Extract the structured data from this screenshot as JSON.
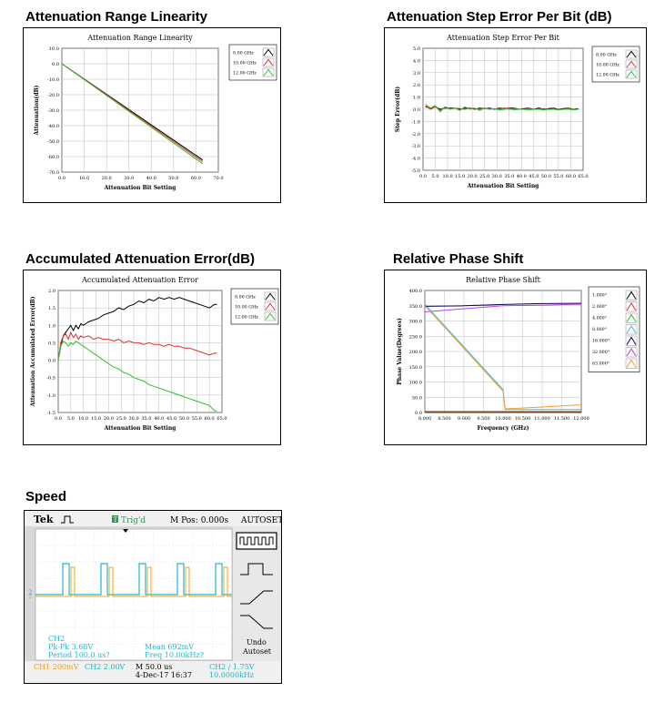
{
  "sections": {
    "s1": "Attenuation Range Linearity",
    "s2": "Attenuation Step Error Per Bit (dB)",
    "s3": "Accumulated Attenuation Error(dB)",
    "s4": "Relative Phase Shift",
    "s5": "Speed"
  },
  "chart_data": [
    {
      "id": "c1",
      "type": "line",
      "title": "Attenuation Range Linearity",
      "xlabel": "Attenuation Bit Setting",
      "ylabel": "Attenuation(dB)",
      "xlim": [
        0,
        70
      ],
      "ylim": [
        -70,
        10
      ],
      "xticks": [
        0,
        10,
        20,
        30,
        40,
        50,
        60,
        70
      ],
      "yticks": [
        10,
        0,
        -10,
        -20,
        -30,
        -40,
        -50,
        -60,
        -70
      ],
      "tick_decimals": 1,
      "grid": true,
      "legend_position": "top-right",
      "series": [
        {
          "name": "8.00 GHz",
          "color": "#000000",
          "x": [
            0,
            63
          ],
          "y": [
            0,
            -62.2
          ]
        },
        {
          "name": "10.00 GHz",
          "color": "#e03030",
          "x": [
            0,
            63
          ],
          "y": [
            0,
            -63.3
          ]
        },
        {
          "name": "12.00 GHz",
          "color": "#30c030",
          "x": [
            0,
            63
          ],
          "y": [
            0,
            -64.6
          ]
        }
      ]
    },
    {
      "id": "c2",
      "type": "line",
      "title": "Attenuation Step Error Per Bit",
      "xlabel": "Attenuation Bit Setting",
      "ylabel": "Step Error(dB)",
      "xlim": [
        0,
        65
      ],
      "ylim": [
        -5,
        5
      ],
      "xticks": [
        0,
        5,
        10,
        15,
        20,
        25,
        30,
        35,
        40,
        45,
        50,
        55,
        60,
        65
      ],
      "yticks": [
        5,
        4,
        3,
        2,
        1,
        0,
        -1,
        -2,
        -3,
        -4,
        -5
      ],
      "tick_decimals": 1,
      "grid": true,
      "legend_position": "top-right",
      "series": [
        {
          "name": "8.00 GHz",
          "color": "#000000",
          "x": [
            1,
            3,
            5,
            7,
            9,
            11,
            13,
            15,
            17,
            19,
            21,
            23,
            25,
            27,
            29,
            31,
            33,
            35,
            37,
            39,
            41,
            43,
            45,
            47,
            49,
            51,
            53,
            55,
            57,
            59,
            61,
            63
          ],
          "y": [
            0.2,
            0.1,
            0.2,
            0.0,
            0.1,
            0.1,
            0.1,
            0.0,
            0.1,
            0.1,
            0.0,
            0.1,
            0.05,
            0.1,
            0.0,
            0.1,
            0.05,
            0.1,
            0.1,
            0.0,
            0.05,
            0.1,
            0.0,
            0.1,
            0.0,
            0.05,
            0.1,
            0.0,
            0.05,
            0.1,
            0.0,
            0.05
          ]
        },
        {
          "name": "10.00 GHz",
          "color": "#e03030",
          "x": [
            1,
            3,
            5,
            7,
            9,
            11,
            13,
            15,
            17,
            19,
            21,
            23,
            25,
            27,
            29,
            31,
            33,
            35,
            37,
            39,
            41,
            43,
            45,
            47,
            49,
            51,
            53,
            55,
            57,
            59,
            61,
            63
          ],
          "y": [
            0.3,
            0.0,
            0.2,
            -0.1,
            0.2,
            0.0,
            0.1,
            0.05,
            0.0,
            0.1,
            0.05,
            0.0,
            0.1,
            0.0,
            0.05,
            0.0,
            0.1,
            0.0,
            0.05,
            0.0,
            0.0,
            0.05,
            0.0,
            0.0,
            0.05,
            0.0,
            0.0,
            0.0,
            0.0,
            0.05,
            0.0,
            0.0
          ]
        },
        {
          "name": "12.00 GHz",
          "color": "#30c030",
          "x": [
            1,
            3,
            5,
            7,
            9,
            11,
            13,
            15,
            17,
            19,
            21,
            23,
            25,
            27,
            29,
            31,
            33,
            35,
            37,
            39,
            41,
            43,
            45,
            47,
            49,
            51,
            53,
            55,
            57,
            59,
            61,
            63
          ],
          "y": [
            0.4,
            0.1,
            0.3,
            -0.2,
            0.2,
            0.0,
            0.1,
            -0.1,
            0.2,
            0.0,
            0.1,
            -0.1,
            0.1,
            0.0,
            0.05,
            -0.05,
            0.0,
            0.05,
            -0.05,
            0.0,
            0.0,
            -0.05,
            0.0,
            0.0,
            -0.05,
            0.0,
            0.0,
            -0.05,
            0.0,
            0.0,
            -0.05,
            0.0
          ]
        }
      ]
    },
    {
      "id": "c3",
      "type": "line",
      "title": "Accumulated Attenuation Error",
      "xlabel": "Attenuation Bit Setting",
      "ylabel": "Attenuation Accumulated Error(dB)",
      "xlim": [
        0,
        65
      ],
      "ylim": [
        -1.5,
        2.0
      ],
      "xticks": [
        0,
        5,
        10,
        15,
        20,
        25,
        30,
        35,
        40,
        45,
        50,
        55,
        60,
        65
      ],
      "yticks": [
        2.0,
        1.5,
        1.0,
        0.5,
        0.0,
        -0.5,
        -1.0,
        -1.5
      ],
      "tick_decimals": 1,
      "grid": true,
      "legend_position": "top-right",
      "series": [
        {
          "name": "8.00 GHz",
          "color": "#000000",
          "x": [
            0,
            1,
            2,
            3,
            4,
            5,
            6,
            7,
            8,
            9,
            10,
            12,
            14,
            16,
            18,
            20,
            22,
            24,
            26,
            28,
            30,
            32,
            34,
            36,
            38,
            40,
            42,
            44,
            46,
            48,
            50,
            52,
            54,
            56,
            58,
            60,
            62,
            63
          ],
          "y": [
            0.0,
            0.4,
            0.7,
            0.8,
            0.9,
            1.0,
            0.85,
            1.0,
            0.9,
            1.05,
            1.0,
            1.1,
            1.15,
            1.2,
            1.3,
            1.35,
            1.4,
            1.5,
            1.45,
            1.55,
            1.6,
            1.7,
            1.65,
            1.75,
            1.7,
            1.8,
            1.75,
            1.8,
            1.75,
            1.8,
            1.75,
            1.7,
            1.65,
            1.6,
            1.55,
            1.5,
            1.6,
            1.6
          ]
        },
        {
          "name": "10.00 GHz",
          "color": "#e03030",
          "x": [
            0,
            1,
            2,
            3,
            4,
            5,
            6,
            7,
            8,
            9,
            10,
            12,
            14,
            16,
            18,
            20,
            22,
            24,
            26,
            28,
            30,
            32,
            34,
            36,
            38,
            40,
            42,
            44,
            46,
            48,
            50,
            52,
            54,
            56,
            58,
            60,
            62,
            63
          ],
          "y": [
            0.0,
            0.5,
            0.7,
            0.75,
            0.6,
            0.8,
            0.65,
            0.75,
            0.6,
            0.7,
            0.65,
            0.7,
            0.6,
            0.65,
            0.6,
            0.6,
            0.55,
            0.6,
            0.5,
            0.55,
            0.5,
            0.5,
            0.45,
            0.5,
            0.45,
            0.45,
            0.4,
            0.45,
            0.4,
            0.4,
            0.35,
            0.35,
            0.3,
            0.25,
            0.2,
            0.15,
            0.2,
            0.2
          ]
        },
        {
          "name": "12.00 GHz",
          "color": "#30c030",
          "x": [
            0,
            1,
            2,
            3,
            4,
            5,
            6,
            7,
            8,
            9,
            10,
            12,
            14,
            16,
            18,
            20,
            22,
            24,
            26,
            28,
            30,
            32,
            34,
            36,
            38,
            40,
            42,
            44,
            46,
            48,
            50,
            52,
            54,
            56,
            58,
            60,
            62,
            63
          ],
          "y": [
            0.0,
            0.4,
            0.55,
            0.5,
            0.4,
            0.5,
            0.45,
            0.55,
            0.5,
            0.45,
            0.4,
            0.3,
            0.2,
            0.1,
            0.0,
            -0.1,
            -0.2,
            -0.25,
            -0.35,
            -0.4,
            -0.5,
            -0.55,
            -0.6,
            -0.7,
            -0.75,
            -0.8,
            -0.85,
            -0.9,
            -0.95,
            -1.0,
            -1.05,
            -1.1,
            -1.15,
            -1.2,
            -1.25,
            -1.3,
            -1.45,
            -1.45
          ]
        }
      ]
    },
    {
      "id": "c4",
      "type": "line",
      "title": "Relative Phase Shift",
      "xlabel": "Frequency (GHz)",
      "ylabel": "Phase Value(Degrees)",
      "xlim": [
        8.0,
        12.0
      ],
      "ylim": [
        0,
        400
      ],
      "xticks": [
        8.0,
        8.5,
        9.0,
        9.5,
        10.0,
        10.5,
        11.0,
        11.5,
        12.0
      ],
      "yticks": [
        400,
        350,
        300,
        250,
        200,
        150,
        100,
        50,
        0
      ],
      "tick_decimals": 3,
      "ytick_decimals": 1,
      "grid": true,
      "legend_position": "top-right",
      "series": [
        {
          "name": "1.000°",
          "color": "#000000",
          "x": [
            8.0,
            12.0
          ],
          "y": [
            1,
            1
          ]
        },
        {
          "name": "2.000°",
          "color": "#e03030",
          "x": [
            8.0,
            12.0
          ],
          "y": [
            2,
            2
          ]
        },
        {
          "name": "4.000°",
          "color": "#30c030",
          "x": [
            8.0,
            12.0
          ],
          "y": [
            4,
            4
          ]
        },
        {
          "name": "8.000°",
          "color": "#40b8e8",
          "x": [
            8.0,
            9.0,
            10.0,
            10.05,
            12.0
          ],
          "y": [
            355,
            215,
            75,
            10,
            10
          ]
        },
        {
          "name": "16.000°",
          "color": "#000060",
          "x": [
            8.0,
            9.0,
            10.0,
            11.0,
            12.0
          ],
          "y": [
            348,
            350,
            354,
            357,
            358
          ]
        },
        {
          "name": "32.000°",
          "color": "#c040e0",
          "x": [
            8.0,
            9.0,
            10.0,
            11.0,
            12.0
          ],
          "y": [
            330,
            340,
            350,
            352,
            355
          ]
        },
        {
          "name": "63.000°",
          "color": "#f0a020",
          "x": [
            8.0,
            9.0,
            10.0,
            10.05,
            11.0,
            12.0
          ],
          "y": [
            350,
            210,
            70,
            12,
            18,
            25
          ]
        }
      ]
    }
  ],
  "scope": {
    "brand": "Tek",
    "trig": "Trig'd",
    "trig_indicator": "T",
    "mpos": "M Pos: 0.000s",
    "autoset": "AUTOSET",
    "undo": "Undo\nAutoset",
    "ch2_label": "CH2",
    "pkpk": "Pk-Pk 3.68V",
    "period": "Period 100.0 us?",
    "mean": "Mean 692mV",
    "freq": "Freq 10.00kHz?",
    "ch1_scale": "CH1  200mV",
    "ch2_scale": "CH2  2.00V",
    "mtime": "M 50.0 us",
    "date": "4-Dec-17 16:37",
    "ch2_trig": "CH2  ∕  1.75V",
    "trig_freq": "10.0000kHz",
    "marker_ch2": "2",
    "marker_ch1": "1",
    "colors": {
      "ch1": "#f0a020",
      "ch2": "#20b8c8",
      "trig": "#20a040"
    }
  }
}
